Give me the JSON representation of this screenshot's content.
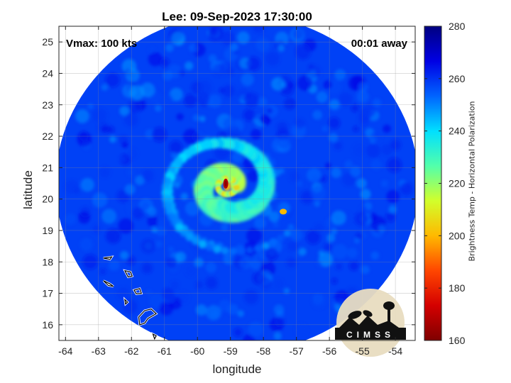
{
  "title": "Lee: 09-Sep-2023 17:30:00",
  "annotations": {
    "vmax": "Vmax: 100 kts",
    "away": "00:01 away"
  },
  "logo_text": "CIMSS",
  "colorbar": {
    "label": "Brightness Temp - Horizontal Polarization",
    "range": [
      160,
      280
    ],
    "ticks": [
      160,
      180,
      200,
      220,
      240,
      260,
      280
    ],
    "colormap": [
      "#7f0000",
      "#d40000",
      "#ff4600",
      "#ffb900",
      "#d2ff2b",
      "#52ffab",
      "#00dfff",
      "#0064ff",
      "#0000e4",
      "#000080"
    ]
  },
  "chart_data": {
    "type": "heatmap",
    "title": "Lee: 09-Sep-2023 17:30:00",
    "xlabel": "longitude",
    "ylabel": "latitude",
    "xlim": [
      -64.2,
      -53.4
    ],
    "ylim": [
      15.5,
      25.5
    ],
    "xticks": [
      -64,
      -63,
      -62,
      -61,
      -60,
      -59,
      -58,
      -57,
      -56,
      -55,
      -54
    ],
    "yticks": [
      16,
      17,
      18,
      19,
      20,
      21,
      22,
      23,
      24,
      25
    ],
    "grid": true,
    "storm_center": {
      "lon": -59.1,
      "lat": 20.4
    },
    "swath": {
      "center_lon": -58.8,
      "center_lat": 20.5,
      "radius_deg": 5.5
    },
    "value_range": [
      160,
      280
    ],
    "background_tb": 258,
    "eyewall_min_tb": 168
  }
}
